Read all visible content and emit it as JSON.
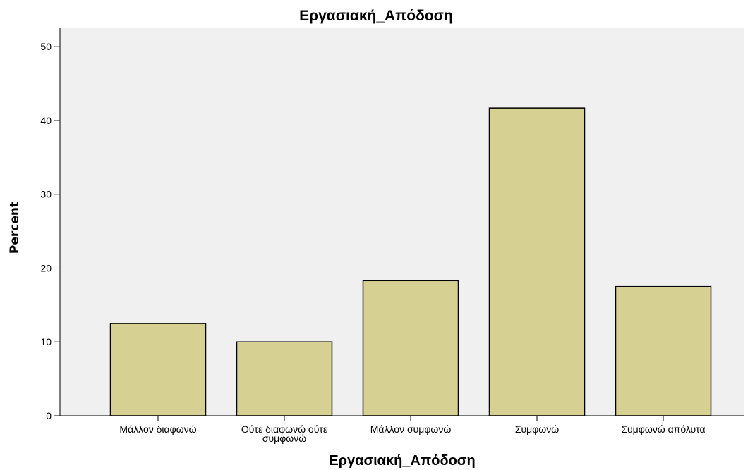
{
  "chart_data": {
    "type": "bar",
    "title": "Εργασιακή_Απόδοση",
    "xlabel": "Εργασιακή_Απόδοση",
    "ylabel": "Percent",
    "categories": [
      [
        "Μάλλον διαφωνώ"
      ],
      [
        "Ούτε διαφωνώ ούτε",
        "συμφωνώ"
      ],
      [
        "Μάλλον συμφωνώ"
      ],
      [
        "Συμφωνώ"
      ],
      [
        "Συμφωνώ απόλυτα"
      ]
    ],
    "values": [
      12.5,
      10.0,
      18.3,
      41.7,
      17.5
    ],
    "ylim": [
      0,
      52.5
    ],
    "yticks": [
      0,
      10,
      20,
      30,
      40,
      50
    ],
    "grid": false,
    "colors": {
      "bar_fill": "#d6d193",
      "bar_stroke": "#000000",
      "plot_background": "#f0f0f0"
    }
  }
}
